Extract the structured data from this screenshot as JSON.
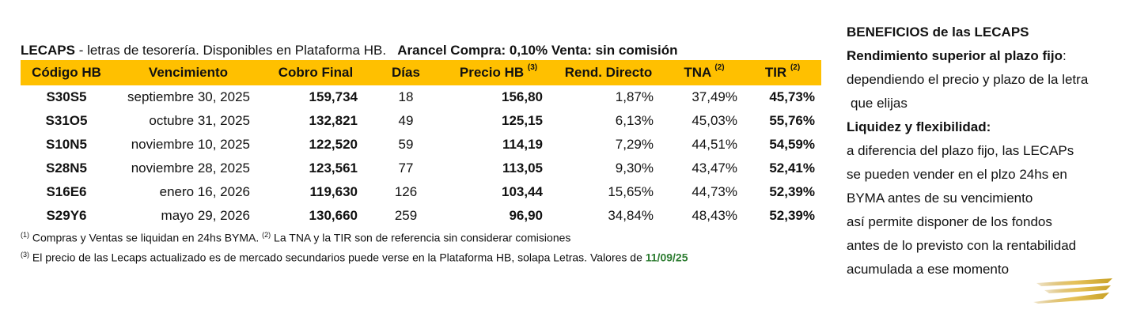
{
  "header": {
    "lead_bold": "LECAPS",
    "lead_text": " - letras de tesorería. Disponibles en Plataforma HB.",
    "arancel": "Arancel Compra: 0,10% Venta: sin comisión"
  },
  "table": {
    "columns": [
      {
        "label": "Código HB",
        "sup": ""
      },
      {
        "label": "Vencimiento",
        "sup": ""
      },
      {
        "label": "Cobro Final",
        "sup": ""
      },
      {
        "label": "Días",
        "sup": ""
      },
      {
        "label": "Precio HB ",
        "sup": "(3)"
      },
      {
        "label": "Rend. Directo",
        "sup": ""
      },
      {
        "label": "TNA ",
        "sup": "(2)"
      },
      {
        "label": "TIR ",
        "sup": "(2)"
      }
    ],
    "rows": [
      {
        "code": "S30S5",
        "venc": "septiembre 30, 2025",
        "cobro": "159,734",
        "dias": "18",
        "precio": "156,80",
        "rend": "1,87%",
        "tna": "37,49%",
        "tir": "45,73%"
      },
      {
        "code": "S31O5",
        "venc": "octubre 31, 2025",
        "cobro": "132,821",
        "dias": "49",
        "precio": "125,15",
        "rend": "6,13%",
        "tna": "45,03%",
        "tir": "55,76%"
      },
      {
        "code": "S10N5",
        "venc": "noviembre 10, 2025",
        "cobro": "122,520",
        "dias": "59",
        "precio": "114,19",
        "rend": "7,29%",
        "tna": "44,51%",
        "tir": "54,59%"
      },
      {
        "code": "S28N5",
        "venc": "noviembre 28, 2025",
        "cobro": "123,561",
        "dias": "77",
        "precio": "113,05",
        "rend": "9,30%",
        "tna": "43,47%",
        "tir": "52,41%"
      },
      {
        "code": "S16E6",
        "venc": "enero 16, 2026",
        "cobro": "119,630",
        "dias": "126",
        "precio": "103,44",
        "rend": "15,65%",
        "tna": "44,73%",
        "tir": "52,39%"
      },
      {
        "code": "S29Y6",
        "venc": "mayo 29, 2026",
        "cobro": "130,660",
        "dias": "259",
        "precio": "96,90",
        "rend": "34,84%",
        "tna": "48,43%",
        "tir": "52,39%"
      }
    ]
  },
  "notes": {
    "n1_sup": "(1)",
    "n1_text": " Compras y Ventas se liquidan en 24hs BYMA. ",
    "n2_sup": "(2)",
    "n2_text": " La TNA y la TIR son de referencia sin considerar comisiones",
    "n3_sup": "(3)",
    "n3_text": " El precio de las Lecaps actualizado es de mercado secundarios puede verse en la Plataforma HB, solapa Letras. Valores de ",
    "n3_date": "11/09/25"
  },
  "benefits": {
    "title": "BENEFICIOS de las LECAPS",
    "b1_title": "Rendimiento superior al plazo fijo",
    "b1_colon": ":",
    "b1_lines": [
      "dependiendo el precio y plazo de la letra",
      " que elijas"
    ],
    "b2_title": " Liquidez y flexibilidad:",
    "b2_lines": [
      "a diferencia del plazo fijo, las LECAPs",
      "se pueden vender en el plzo 24hs en",
      "BYMA antes de su vencimiento",
      "así permite disponer de los fondos",
      "antes de lo previsto con la rentabilidad",
      "acumulada a ese momento"
    ]
  },
  "colors": {
    "header_bg": "#ffc000",
    "date_green": "#2e7d32",
    "logo_gold": "#c9a227"
  },
  "logo": {
    "icon": "gold-swoosh-logo-icon"
  }
}
